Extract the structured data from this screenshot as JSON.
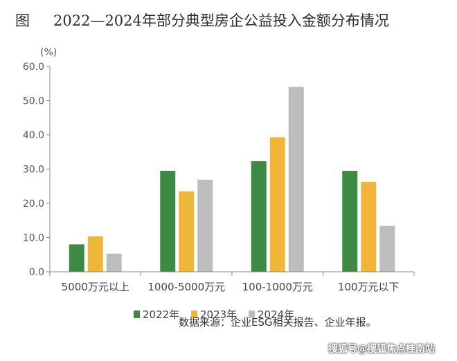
{
  "figure": {
    "label": "图",
    "title": "2022—2024年部分典型房企公益投入金额分布情况"
  },
  "source_note": "数据来源：企业ESG相关报告、企业年报。",
  "watermark": "搜狐号@搜狐焦点桂南站",
  "chart_data": {
    "type": "bar",
    "title": "2022—2024年部分典型房企公益投入金额分布情况",
    "ylabel": "(%)",
    "xlabel": "",
    "ylim": [
      0,
      60
    ],
    "yticks": [
      "0.0",
      "10.0",
      "20.0",
      "30.0",
      "40.0",
      "50.0",
      "60.0"
    ],
    "grid": false,
    "legend_position": "bottom",
    "categories": [
      "5000万元以上",
      "1000-5000万元",
      "100-1000万元",
      "100万元以下"
    ],
    "series": [
      {
        "name": "2022年",
        "color": "#3c8a44",
        "values": [
          8.0,
          29.5,
          32.3,
          29.5
        ]
      },
      {
        "name": "2023年",
        "color": "#f0b63a",
        "values": [
          10.4,
          23.5,
          39.3,
          26.3
        ]
      },
      {
        "name": "2024年",
        "color": "#bdbdbf",
        "values": [
          5.3,
          26.9,
          54.0,
          13.4
        ]
      }
    ]
  }
}
